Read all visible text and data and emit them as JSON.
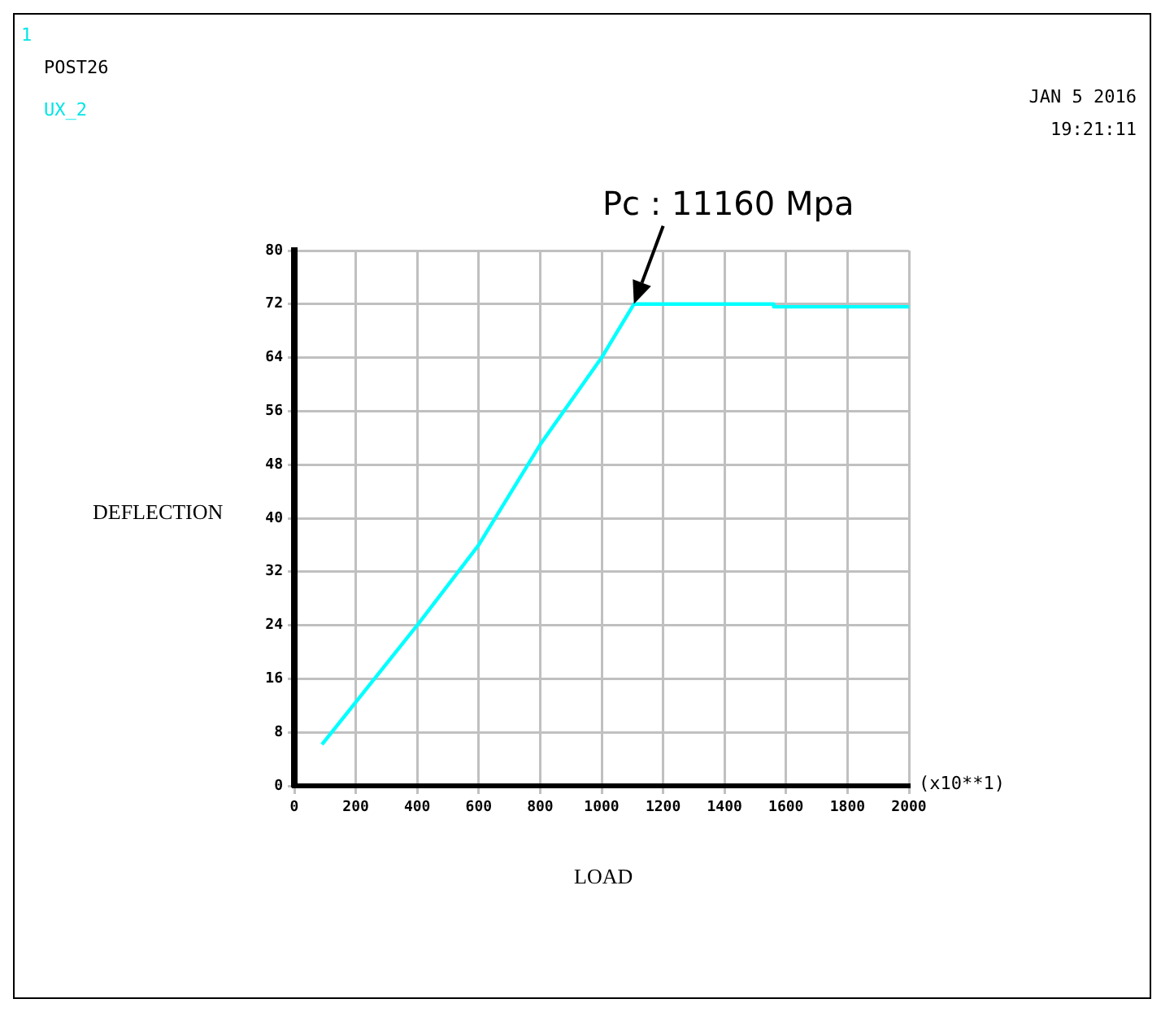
{
  "chart_data": {
    "type": "line",
    "xlabel": "LOAD",
    "ylabel": "DEFLECTION",
    "series": [
      {
        "color": "#00ffff",
        "x": [
          90,
          400,
          600,
          800,
          1000,
          1105,
          1560,
          1560,
          2000
        ],
        "values": [
          6.2,
          24,
          36,
          51,
          64,
          72,
          72,
          71.6,
          71.6
        ]
      }
    ],
    "xlim": [
      0,
      2000
    ],
    "xticks": [
      0,
      200,
      400,
      600,
      800,
      1000,
      1200,
      1400,
      1600,
      1800,
      2000
    ],
    "ylim": [
      0,
      80
    ],
    "yticks": [
      0,
      8,
      16,
      24,
      32,
      40,
      48,
      56,
      64,
      72,
      80
    ],
    "grid": true,
    "marker": "none",
    "line_style": "solid",
    "annotations": [
      "1",
      "POST26",
      "UX_2",
      "JAN 5 2016",
      "19:21:11",
      "(x10**1)",
      {
        "text": "Pc : 11160 Mpa",
        "x": 1105,
        "y": 72
      }
    ]
  }
}
